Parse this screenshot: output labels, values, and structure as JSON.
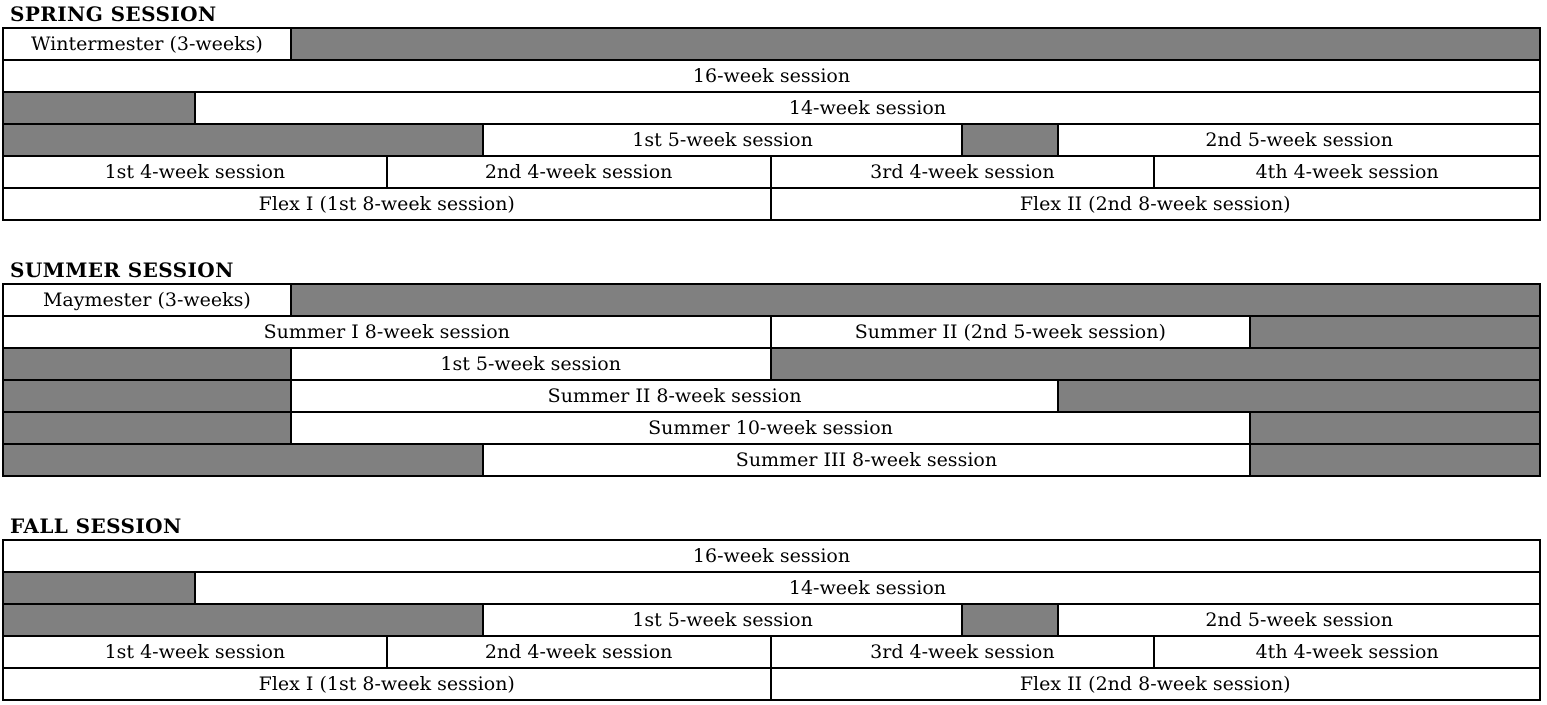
{
  "grid": {
    "total_weeks": 16
  },
  "colors": {
    "closed_fill": "#808080",
    "open_fill": "#ffffff",
    "border": "#000000",
    "text": "#000000",
    "background": "#ffffff"
  },
  "sections": [
    {
      "id": "spring",
      "title": "SPRING SESSION",
      "rows": [
        {
          "cells": [
            {
              "type": "session",
              "label": "Wintermester (3-weeks)",
              "weeks": 3
            },
            {
              "type": "gap",
              "weeks": 13
            }
          ]
        },
        {
          "cells": [
            {
              "type": "session",
              "label": "16-week session",
              "weeks": 16
            }
          ]
        },
        {
          "cells": [
            {
              "type": "gap",
              "weeks": 2
            },
            {
              "type": "session",
              "label": "14-week session",
              "weeks": 14
            }
          ]
        },
        {
          "cells": [
            {
              "type": "gap",
              "weeks": 5
            },
            {
              "type": "session",
              "label": "1st 5-week session",
              "weeks": 5
            },
            {
              "type": "gap",
              "weeks": 1
            },
            {
              "type": "session",
              "label": "2nd 5-week session",
              "weeks": 5
            }
          ]
        },
        {
          "cells": [
            {
              "type": "session",
              "label": "1st 4-week session",
              "weeks": 4
            },
            {
              "type": "session",
              "label": "2nd 4-week session",
              "weeks": 4
            },
            {
              "type": "session",
              "label": "3rd 4-week session",
              "weeks": 4
            },
            {
              "type": "session",
              "label": "4th 4-week session",
              "weeks": 4
            }
          ]
        },
        {
          "cells": [
            {
              "type": "session",
              "label": "Flex I (1st 8-week session)",
              "weeks": 8
            },
            {
              "type": "session",
              "label": "Flex II (2nd 8-week session)",
              "weeks": 8
            }
          ]
        }
      ]
    },
    {
      "id": "summer",
      "title": "SUMMER SESSION",
      "rows": [
        {
          "cells": [
            {
              "type": "session",
              "label": "Maymester (3-weeks)",
              "weeks": 3
            },
            {
              "type": "gap",
              "weeks": 13
            }
          ]
        },
        {
          "cells": [
            {
              "type": "session",
              "label": "Summer I 8-week session",
              "weeks": 8
            },
            {
              "type": "session",
              "label": "Summer II (2nd 5-week session)",
              "weeks": 5
            },
            {
              "type": "gap",
              "weeks": 3
            }
          ]
        },
        {
          "cells": [
            {
              "type": "gap",
              "weeks": 3
            },
            {
              "type": "session",
              "label": "1st 5-week session",
              "weeks": 5
            },
            {
              "type": "gap",
              "weeks": 8
            }
          ]
        },
        {
          "cells": [
            {
              "type": "gap",
              "weeks": 3
            },
            {
              "type": "session",
              "label": "Summer II 8-week session",
              "weeks": 8
            },
            {
              "type": "gap",
              "weeks": 5
            }
          ]
        },
        {
          "cells": [
            {
              "type": "gap",
              "weeks": 3
            },
            {
              "type": "session",
              "label": "Summer 10-week session",
              "weeks": 10
            },
            {
              "type": "gap",
              "weeks": 3
            }
          ]
        },
        {
          "cells": [
            {
              "type": "gap",
              "weeks": 5
            },
            {
              "type": "session",
              "label": "Summer III 8-week session",
              "weeks": 8
            },
            {
              "type": "gap",
              "weeks": 3
            }
          ]
        }
      ]
    },
    {
      "id": "fall",
      "title": "FALL SESSION",
      "rows": [
        {
          "cells": [
            {
              "type": "session",
              "label": "16-week session",
              "weeks": 16
            }
          ]
        },
        {
          "cells": [
            {
              "type": "gap",
              "weeks": 2
            },
            {
              "type": "session",
              "label": "14-week session",
              "weeks": 14
            }
          ]
        },
        {
          "cells": [
            {
              "type": "gap",
              "weeks": 5
            },
            {
              "type": "session",
              "label": "1st 5-week session",
              "weeks": 5
            },
            {
              "type": "gap",
              "weeks": 1
            },
            {
              "type": "session",
              "label": "2nd 5-week session",
              "weeks": 5
            }
          ]
        },
        {
          "cells": [
            {
              "type": "session",
              "label": "1st 4-week session",
              "weeks": 4
            },
            {
              "type": "session",
              "label": "2nd 4-week session",
              "weeks": 4
            },
            {
              "type": "session",
              "label": "3rd 4-week session",
              "weeks": 4
            },
            {
              "type": "session",
              "label": "4th 4-week session",
              "weeks": 4
            }
          ]
        },
        {
          "cells": [
            {
              "type": "session",
              "label": "Flex I (1st 8-week session)",
              "weeks": 8
            },
            {
              "type": "session",
              "label": "Flex II (2nd 8-week session)",
              "weeks": 8
            }
          ]
        }
      ]
    }
  ]
}
